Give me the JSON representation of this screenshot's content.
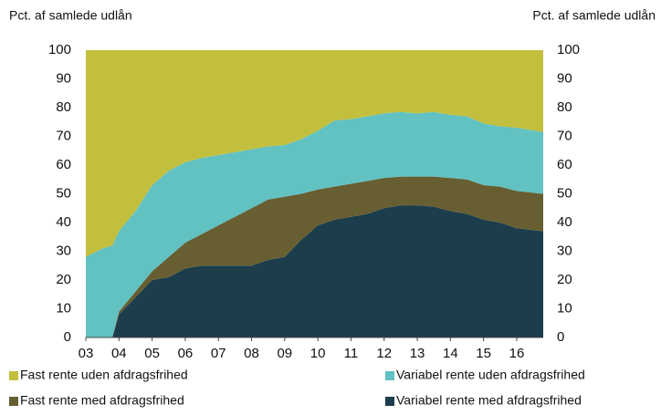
{
  "chart_data": {
    "type": "stacked_area",
    "ylabel": "Pct. af samlede udlån",
    "y2label": "Pct. af samlede udlån",
    "x": [
      2003,
      2003.5,
      2003.8,
      2004,
      2004.5,
      2005,
      2005.5,
      2006,
      2006.5,
      2007,
      2007.5,
      2008,
      2008.5,
      2009,
      2009.5,
      2010,
      2010.5,
      2011,
      2011.5,
      2012,
      2012.5,
      2013,
      2013.5,
      2014,
      2014.5,
      2015,
      2015.5,
      2016,
      2016.8
    ],
    "series": [
      {
        "name": "Variabel rente med afdragsfrihed",
        "color": "#1c3d4b",
        "values": [
          0,
          0,
          0,
          8,
          14,
          20,
          21,
          24,
          25,
          25,
          25,
          25,
          27,
          28,
          34,
          39,
          41,
          42,
          43,
          45,
          46,
          46,
          45.5,
          44,
          43,
          41,
          40,
          38,
          37
        ]
      },
      {
        "name": "Fast rente med afdragsfrihed",
        "color": "#675e32",
        "values": [
          0,
          0,
          0,
          1,
          2,
          3,
          7,
          9,
          11,
          14,
          17,
          20,
          21,
          21,
          16,
          12.5,
          11.5,
          11.5,
          11.5,
          10.5,
          10,
          10,
          10.5,
          11.5,
          12,
          12,
          12.5,
          13,
          13
        ]
      },
      {
        "name": "Variabel rente uden afdragsfrihed",
        "color": "#62c1c1",
        "values": [
          28,
          31,
          32,
          28,
          28,
          30,
          30,
          28,
          26.5,
          24.5,
          22.5,
          20.5,
          18.5,
          18,
          19,
          20.5,
          23,
          22.5,
          22.5,
          22.5,
          22.5,
          22,
          22.5,
          22,
          22,
          21.5,
          21,
          22,
          21.5
        ]
      },
      {
        "name": "Fast rente uden afdragsfrihed",
        "color": "#c3bf3e",
        "values": [
          72,
          69,
          68,
          63,
          56,
          47,
          42,
          39,
          37.5,
          36.5,
          35.5,
          34.5,
          33.5,
          33,
          31,
          28,
          24.5,
          24,
          23,
          22,
          21.5,
          22,
          21.5,
          22.5,
          23,
          25.5,
          26.5,
          27,
          28.5
        ]
      }
    ],
    "xlim": [
      2003,
      2016.8
    ],
    "xticks": [
      {
        "value": 2003,
        "label": "03"
      },
      {
        "value": 2004,
        "label": "04"
      },
      {
        "value": 2005,
        "label": "05"
      },
      {
        "value": 2006,
        "label": "06"
      },
      {
        "value": 2007,
        "label": "07"
      },
      {
        "value": 2008,
        "label": "08"
      },
      {
        "value": 2009,
        "label": "09"
      },
      {
        "value": 2010,
        "label": "10"
      },
      {
        "value": 2011,
        "label": "11"
      },
      {
        "value": 2012,
        "label": "12"
      },
      {
        "value": 2013,
        "label": "13"
      },
      {
        "value": 2014,
        "label": "14"
      },
      {
        "value": 2015,
        "label": "15"
      },
      {
        "value": 2016,
        "label": "16"
      }
    ],
    "ylim": [
      0,
      100
    ],
    "yticks": [
      0,
      10,
      20,
      30,
      40,
      50,
      60,
      70,
      80,
      90,
      100
    ],
    "y2lim": [
      0,
      100
    ],
    "y2ticks": [
      0,
      10,
      20,
      30,
      40,
      50,
      60,
      70,
      80,
      90,
      100
    ]
  }
}
